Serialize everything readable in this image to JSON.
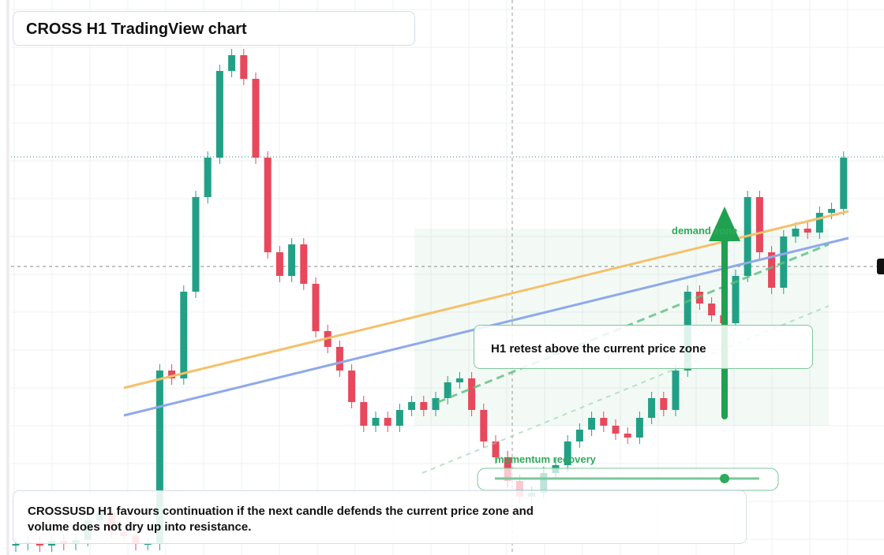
{
  "title": "CROSS H1 TradingView chart",
  "note": "CROSSUSD H1 favours continuation if the next candle defends the current price zone and volume does not dry up into resistance.",
  "retest_label": "H1 retest above the current price zone",
  "demand_label": "demand zone",
  "momentum_label": "momentum recovery",
  "chart_data": {
    "type": "candlestick",
    "ylim": [
      0,
      70.4
    ],
    "up_color": "#22a085",
    "down_color": "#e8485c",
    "open": [
      1.2,
      1.4,
      1.6,
      1.2,
      1.8,
      1.4,
      1.9,
      4.4,
      5.4,
      2.9,
      2.4,
      1.4,
      1.4,
      23.4,
      22.4,
      33.4,
      45.4,
      50.4,
      61.4,
      63.4,
      60.4,
      50.4,
      38.4,
      35.4,
      39.4,
      34.4,
      28.4,
      26.4,
      23.4,
      19.4,
      16.4,
      17.4,
      16.4,
      18.4,
      19.4,
      18.4,
      19.9,
      21.9,
      22.4,
      18.4,
      14.4,
      12.4,
      9.4,
      7.4,
      7.9,
      10.4,
      11.4,
      14.4,
      15.9,
      17.4,
      16.4,
      15.4,
      14.9,
      17.4,
      19.9,
      18.4,
      23.4,
      33.4,
      31.9,
      30.4,
      29.4,
      35.4,
      45.4,
      38.4,
      33.9,
      40.4,
      41.4,
      40.9,
      43.4,
      43.9
    ],
    "high": [
      2.2,
      2.4,
      2.4,
      2.6,
      2.6,
      2.7,
      5.2,
      6.2,
      6.2,
      3.7,
      3.2,
      2.2,
      24.2,
      24.2,
      34.2,
      46.2,
      51.2,
      62.2,
      64.2,
      64.2,
      61.2,
      51.2,
      39.2,
      40.2,
      40.2,
      35.2,
      29.2,
      27.2,
      24.2,
      20.2,
      18.2,
      18.2,
      19.2,
      20.2,
      20.2,
      20.7,
      22.7,
      23.2,
      23.2,
      19.2,
      15.2,
      13.2,
      10.2,
      8.7,
      11.2,
      12.2,
      15.2,
      16.7,
      18.2,
      18.2,
      17.2,
      16.2,
      18.2,
      20.7,
      20.7,
      24.2,
      34.2,
      34.2,
      32.7,
      31.2,
      36.2,
      46.2,
      46.2,
      39.2,
      41.2,
      42.2,
      42.2,
      44.2,
      44.7,
      51.2
    ],
    "low": [
      0.4,
      0.6,
      0.4,
      0.4,
      0.6,
      0.6,
      1.1,
      3.6,
      2.1,
      1.6,
      0.6,
      0.6,
      0.6,
      21.6,
      21.6,
      32.6,
      44.6,
      49.6,
      60.6,
      59.6,
      49.6,
      37.6,
      34.6,
      34.6,
      33.6,
      27.6,
      25.6,
      22.6,
      18.6,
      15.6,
      15.6,
      15.6,
      15.6,
      17.6,
      17.6,
      17.6,
      19.1,
      21.1,
      17.6,
      13.6,
      11.6,
      8.6,
      6.6,
      6.6,
      7.1,
      9.6,
      10.6,
      13.6,
      15.1,
      15.6,
      14.6,
      14.1,
      14.1,
      16.6,
      17.6,
      17.6,
      22.6,
      31.1,
      29.6,
      28.6,
      28.6,
      34.6,
      37.6,
      33.1,
      33.1,
      39.6,
      40.1,
      40.1,
      42.6,
      43.1
    ],
    "close": [
      1.4,
      1.6,
      1.2,
      1.8,
      1.4,
      1.9,
      4.4,
      5.4,
      2.9,
      2.4,
      1.4,
      1.4,
      23.4,
      22.4,
      33.4,
      45.4,
      50.4,
      61.4,
      63.4,
      60.4,
      50.4,
      38.4,
      35.4,
      39.4,
      34.4,
      28.4,
      26.4,
      23.4,
      19.4,
      16.4,
      17.4,
      16.4,
      18.4,
      19.4,
      18.4,
      19.9,
      21.9,
      22.4,
      18.4,
      14.4,
      12.4,
      9.4,
      7.4,
      7.9,
      10.4,
      11.4,
      14.4,
      15.9,
      17.4,
      16.4,
      15.4,
      14.9,
      17.4,
      19.9,
      18.4,
      23.4,
      33.4,
      31.9,
      30.4,
      29.4,
      35.4,
      45.4,
      38.4,
      33.9,
      40.4,
      41.4,
      40.9,
      43.4,
      43.9,
      50.4
    ]
  }
}
